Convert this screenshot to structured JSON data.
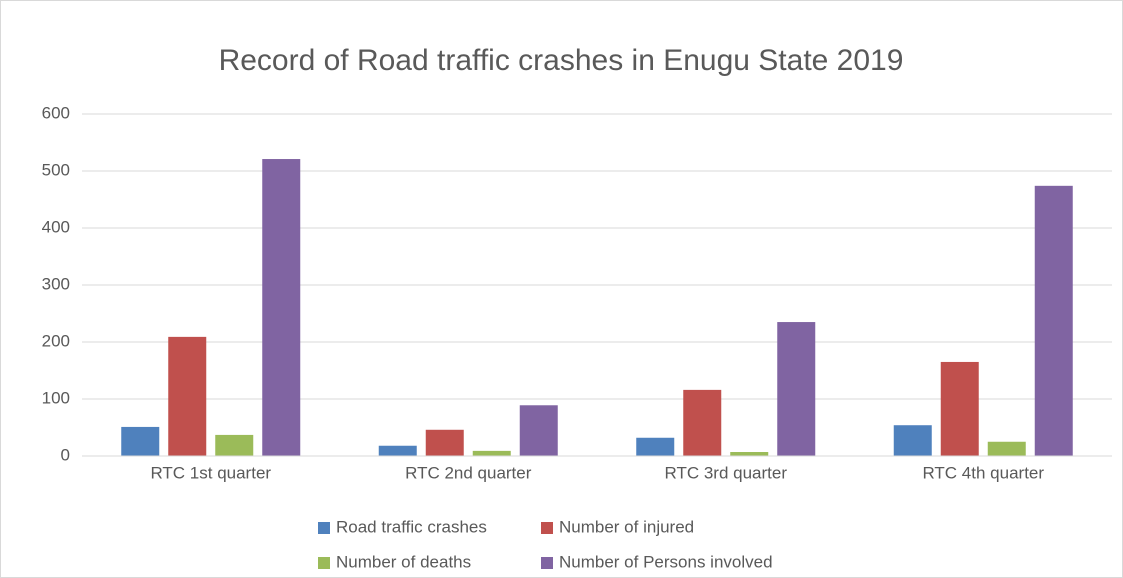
{
  "chart_data": {
    "type": "bar",
    "title": "Record of Road traffic crashes in Enugu State 2019",
    "categories": [
      "RTC 1st quarter",
      "RTC 2nd quarter",
      "RTC 3rd quarter",
      "RTC 4th quarter"
    ],
    "series": [
      {
        "name": "Road traffic crashes",
        "color": "#4f81bd",
        "values": [
          51,
          18,
          32,
          54
        ]
      },
      {
        "name": "Number of injured",
        "color": "#c0504d",
        "values": [
          209,
          46,
          116,
          165
        ]
      },
      {
        "name": "Number of deaths",
        "color": "#9bbb59",
        "values": [
          37,
          9,
          7,
          25
        ]
      },
      {
        "name": "Number of Persons involved",
        "color": "#8064a2",
        "values": [
          521,
          89,
          235,
          474
        ]
      }
    ],
    "ylim": [
      0,
      600
    ],
    "yticks": [
      0,
      100,
      200,
      300,
      400,
      500,
      600
    ],
    "grid": true,
    "legend": "bottom"
  }
}
